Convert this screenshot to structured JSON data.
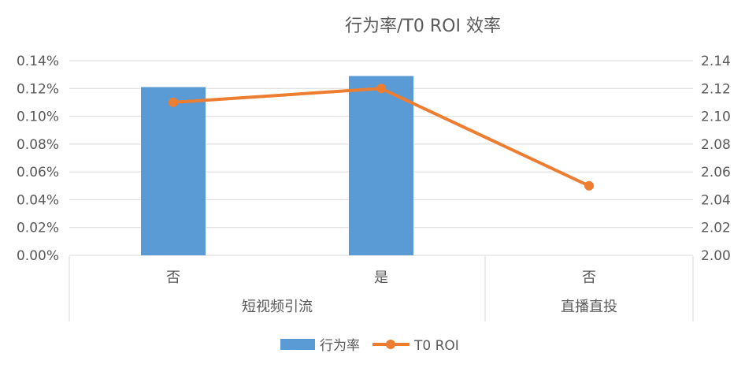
{
  "chart_data": {
    "type": "bar",
    "title": "行为率/T0 ROI 效率",
    "categories": [
      "否",
      "是",
      "否"
    ],
    "category_groups": [
      {
        "label": "短视频引流",
        "span": 2
      },
      {
        "label": "直播直投",
        "span": 1
      }
    ],
    "series": [
      {
        "name": "行为率",
        "type": "bar",
        "axis": "left",
        "color": "#5B9BD5",
        "values": [
          0.00121,
          0.00129,
          null
        ]
      },
      {
        "name": "T0 ROI",
        "type": "line",
        "axis": "right",
        "color": "#ED7D31",
        "values": [
          2.11,
          2.12,
          2.05
        ]
      }
    ],
    "y_left": {
      "ylim": [
        0,
        0.0014
      ],
      "ticks": [
        "0.00%",
        "0.02%",
        "0.04%",
        "0.06%",
        "0.08%",
        "0.10%",
        "0.12%",
        "0.14%"
      ]
    },
    "y_right": {
      "ylim": [
        2.0,
        2.14
      ],
      "ticks": [
        "2.00",
        "2.02",
        "2.04",
        "2.06",
        "2.08",
        "2.10",
        "2.12",
        "2.14"
      ]
    },
    "grid": true,
    "legend": "bottom-center"
  }
}
